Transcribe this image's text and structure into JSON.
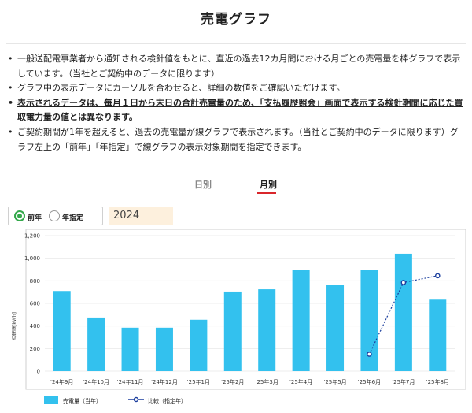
{
  "page": {
    "title": "売電グラフ"
  },
  "notes": [
    "一般送配電事業者から通知される検針値をもとに、直近の過去12カ月間における月ごとの売電量を棒グラフで表示しています。（当社とご契約中のデータに限ります）",
    "グラフ中の表示データにカーソルを合わせると、詳細の数値をご確認いただけます。",
    "表示されるデータは、毎月１日から末日の合計売電量のため、「支払履歴照会」画面で表示する検針期間に応じた買取電力量の値とは異なります。",
    "ご契約期間が1年を超えると、過去の売電量が線グラフで表示されます。（当社とご契約中のデータに限ります）グラフ左上の「前年」「年指定」で線グラフの表示対象期間を指定できます。"
  ],
  "tabs": {
    "daily": "日別",
    "monthly": "月別",
    "active": "monthly"
  },
  "filter": {
    "prev_year_label": "前年",
    "specify_year_label": "年指定",
    "selected": "prev_year",
    "year_value": "2024"
  },
  "colors": {
    "bar": "#33c1ee",
    "comparison_line": "#1c3f9e",
    "radio_checked": "#33a84a",
    "tab_active_underline": "#d9262b",
    "year_input_bg": "#fdf0dd"
  },
  "chart_data": {
    "type": "bar",
    "ylabel": "売電量[kWh]",
    "ylim": [
      0,
      1200
    ],
    "yticks": [
      "0",
      "200",
      "400",
      "600",
      "800",
      "1,000",
      "1,200"
    ],
    "grid": true,
    "categories": [
      "'24年9月",
      "'24年10月",
      "'24年11月",
      "'24年12月",
      "'25年1月",
      "'25年2月",
      "'25年3月",
      "'25年4月",
      "'25年5月",
      "'25年6月",
      "'25年7月",
      "'25年8月"
    ],
    "series": [
      {
        "name": "売電量（当年）",
        "type": "bar",
        "values": [
          710,
          475,
          385,
          385,
          455,
          705,
          725,
          895,
          765,
          900,
          1040,
          640
        ]
      },
      {
        "name": "比較（指定年）",
        "type": "line",
        "values": [
          null,
          null,
          null,
          null,
          null,
          null,
          null,
          null,
          null,
          150,
          785,
          845
        ]
      }
    ],
    "legend_position": "bottom-left"
  }
}
